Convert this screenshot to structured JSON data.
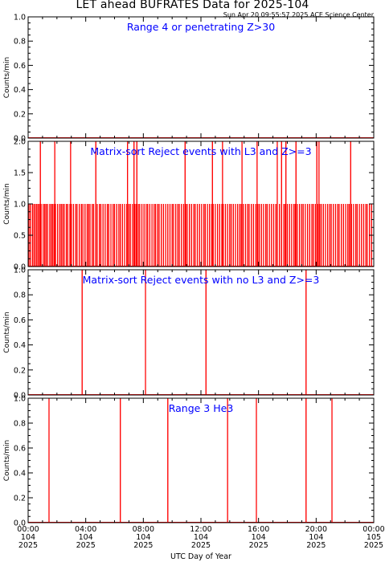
{
  "page": {
    "title": "LET ahead BUFRATES Data for 2025-104",
    "subtitle": "Sun Apr 20 09:55:57 2025 ACE Science Center"
  },
  "colors": {
    "trace": "#ff0000",
    "label": "#0000ff",
    "axis": "#000000"
  },
  "chart_data": [
    {
      "type": "line",
      "title": "Range 4 or  penetrating Z>30",
      "ylabel": "Counts/min",
      "ylim": [
        0,
        1
      ],
      "yticks": [
        "0.0",
        "0.2",
        "0.4",
        "0.6",
        "0.8",
        "1.0"
      ],
      "xlim": [
        0,
        24
      ],
      "x": [],
      "y": []
    },
    {
      "type": "line",
      "title": "Matrix-sort Reject events with L3 and Z>=3",
      "ylabel": "Counts/min",
      "ylim": [
        0,
        2
      ],
      "yticks": [
        "0.0",
        "0.5",
        "1.0",
        "1.5",
        "2.0"
      ],
      "xlim": [
        0,
        24
      ],
      "dense_ones": [
        0.05,
        0.15,
        0.3,
        0.4,
        0.5,
        0.6,
        0.7,
        0.8,
        0.9,
        1.05,
        1.15,
        1.25,
        1.35,
        1.5,
        1.6,
        1.7,
        1.8,
        1.9,
        2.05,
        2.2,
        2.3,
        2.4,
        2.5,
        2.65,
        2.75,
        2.9,
        3.0,
        3.15,
        3.3,
        3.4,
        3.55,
        3.7,
        3.8,
        3.95,
        4.1,
        4.2,
        4.3,
        4.45,
        4.55,
        4.7,
        4.8,
        4.95,
        5.05,
        5.2,
        5.35,
        5.5,
        5.6,
        5.75,
        5.9,
        6.0,
        6.15,
        6.3,
        6.4,
        6.55,
        6.7,
        6.85,
        7.0,
        7.1,
        7.25,
        7.4,
        7.5,
        7.65,
        7.75,
        7.9,
        8.05,
        8.2,
        8.3,
        8.45,
        8.6,
        8.75,
        8.85,
        9.0,
        9.1,
        9.25,
        9.4,
        9.55,
        9.7,
        9.85,
        10.0,
        10.1,
        10.25,
        10.4,
        10.5,
        10.65,
        10.8,
        10.95,
        11.05,
        11.2,
        11.35,
        11.5,
        11.6,
        11.75,
        11.9,
        12.05,
        12.2,
        12.3,
        12.45,
        12.6,
        12.75,
        12.85,
        13.0,
        13.15,
        13.3,
        13.45,
        13.55,
        13.7,
        13.85,
        14.0,
        14.1,
        14.25,
        14.4,
        14.55,
        14.7,
        14.8,
        14.95,
        15.1,
        15.25,
        15.35,
        15.5,
        15.65,
        15.8,
        15.95,
        16.05,
        16.2,
        16.35,
        16.5,
        16.6,
        16.75,
        16.9,
        17.05,
        17.2,
        17.3,
        17.45,
        17.6,
        17.75,
        17.85,
        18.0,
        18.15,
        18.3,
        18.45,
        18.55,
        18.7,
        18.85,
        19.0,
        19.1,
        19.25,
        19.4,
        19.55,
        19.7,
        19.8,
        19.95,
        20.1,
        20.25,
        20.35,
        20.5,
        20.65,
        20.8,
        20.95,
        21.05,
        21.2,
        21.35,
        21.5,
        21.6,
        21.75,
        21.9,
        22.05,
        22.2,
        22.3,
        22.45,
        22.6,
        22.75,
        22.85,
        23.0,
        23.15,
        23.3,
        23.45,
        23.55,
        23.7,
        23.85
      ],
      "twos": [
        0.85,
        1.85,
        2.95,
        4.7,
        6.9,
        7.35,
        7.55,
        10.9,
        12.8,
        13.5,
        14.85,
        15.9,
        17.3,
        17.6,
        17.9,
        18.6,
        20.05,
        20.2,
        22.4
      ]
    },
    {
      "type": "line",
      "title": "Matrix-sort Reject events with no L3 and Z>=3",
      "ylabel": "Counts/min",
      "ylim": [
        0,
        1
      ],
      "yticks": [
        "0.0",
        "0.2",
        "0.4",
        "0.6",
        "0.8",
        "1.0"
      ],
      "xlim": [
        0,
        24
      ],
      "ones": [
        3.75,
        8.15,
        12.35,
        19.3
      ]
    },
    {
      "type": "line",
      "title": "Range 3 He3",
      "ylabel": "Counts/min",
      "ylim": [
        0,
        1
      ],
      "yticks": [
        "0.0",
        "0.2",
        "0.4",
        "0.6",
        "0.8",
        "1.0"
      ],
      "xlim": [
        0,
        24
      ],
      "ones": [
        1.45,
        6.4,
        9.7,
        13.85,
        15.85,
        19.3,
        21.1
      ]
    }
  ],
  "xaxis": {
    "label": "UTC Day of Year",
    "ticks": [
      {
        "x": 0,
        "time": "00:00",
        "doy": "104",
        "year": "2025"
      },
      {
        "x": 4,
        "time": "04:00",
        "doy": "104",
        "year": "2025"
      },
      {
        "x": 8,
        "time": "08:00",
        "doy": "104",
        "year": "2025"
      },
      {
        "x": 12,
        "time": "12:00",
        "doy": "104",
        "year": "2025"
      },
      {
        "x": 16,
        "time": "16:00",
        "doy": "104",
        "year": "2025"
      },
      {
        "x": 20,
        "time": "20:00",
        "doy": "104",
        "year": "2025"
      },
      {
        "x": 24,
        "time": "00:00",
        "doy": "105",
        "year": "2025"
      }
    ]
  }
}
